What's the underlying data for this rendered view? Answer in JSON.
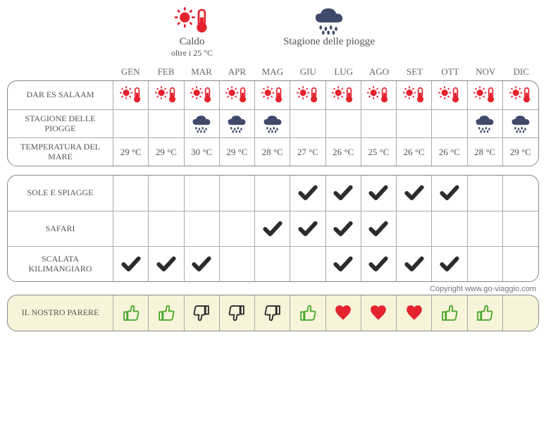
{
  "legend": {
    "hot": {
      "title": "Caldo",
      "subtitle": "oltre i 25 °C"
    },
    "rain": {
      "title": "Stagione delle piogge"
    }
  },
  "months": [
    "GEN",
    "FEB",
    "MAR",
    "APR",
    "MAG",
    "GIU",
    "LUG",
    "AGO",
    "SET",
    "OTT",
    "NOV",
    "DIC"
  ],
  "colors": {
    "hot": "#e4232e",
    "rain": "#3f4a6b",
    "check": "#2c2c2c",
    "thumb_up": "#4aa82f",
    "thumb_down": "#2c2c2c",
    "heart": "#e4232e",
    "border": "#888888",
    "text": "#555555",
    "opinion_bg": "#f7f4d9"
  },
  "group1": {
    "rows": [
      {
        "label": "DAR ES SALAAM",
        "type": "icon",
        "cells": [
          "hot",
          "hot",
          "hot",
          "hot",
          "hot",
          "hot",
          "hot",
          "hot",
          "hot",
          "hot",
          "hot",
          "hot"
        ]
      },
      {
        "label": "STAGIONE DELLE PIOGGE",
        "type": "icon",
        "cells": [
          "",
          "",
          "rain",
          "rain",
          "rain",
          "",
          "",
          "",
          "",
          "",
          "rain",
          "rain"
        ]
      },
      {
        "label": "TEMPERATURA DEL MARE",
        "type": "text",
        "cells": [
          "29 °C",
          "29 °C",
          "30 °C",
          "29 °C",
          "28 °C",
          "27 °C",
          "26 °C",
          "25 °C",
          "26 °C",
          "26 °C",
          "28 °C",
          "29 °C"
        ]
      }
    ]
  },
  "group2": {
    "rows": [
      {
        "label": "SOLE E SPIAGGE",
        "type": "icon",
        "cells": [
          "",
          "",
          "",
          "",
          "",
          "check",
          "check",
          "check",
          "check",
          "check",
          "",
          ""
        ]
      },
      {
        "label": "SAFARI",
        "type": "icon",
        "cells": [
          "",
          "",
          "",
          "",
          "check",
          "check",
          "check",
          "check",
          "",
          "",
          "",
          ""
        ]
      },
      {
        "label": "SCALATA KILIMANGIARO",
        "type": "icon",
        "cells": [
          "check",
          "check",
          "check",
          "",
          "",
          "",
          "check",
          "check",
          "check",
          "check",
          "",
          ""
        ]
      }
    ]
  },
  "group3": {
    "rows": [
      {
        "label": "IL NOSTRO PARERE",
        "type": "icon",
        "cells": [
          "thumb_up",
          "thumb_up",
          "thumb_down",
          "thumb_down",
          "thumb_down",
          "thumb_up",
          "heart",
          "heart",
          "heart",
          "thumb_up",
          "thumb_up",
          ""
        ]
      }
    ]
  },
  "copyright": "Copyright www.go-viaggio.com"
}
